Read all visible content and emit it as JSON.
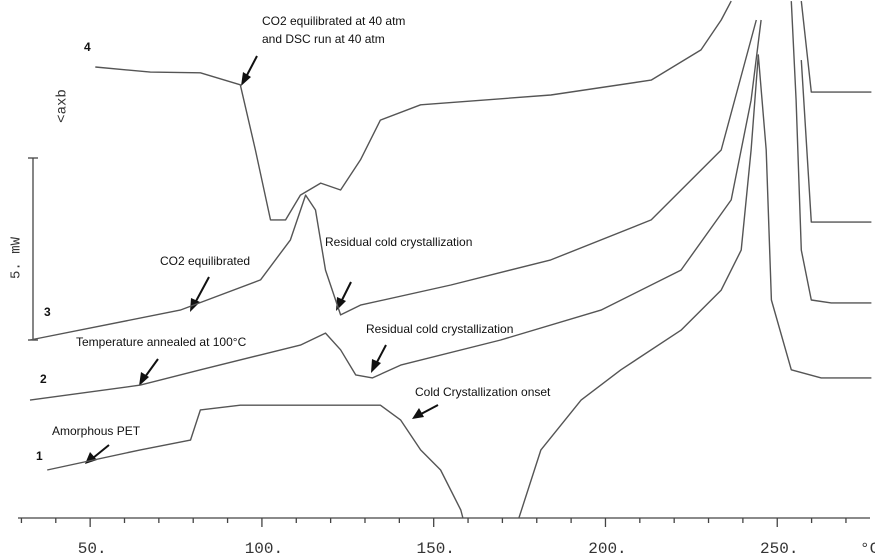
{
  "chart_data": {
    "type": "line",
    "xlim": [
      29,
      277
    ],
    "ylim": [
      0,
      14.2
    ],
    "xticks": [
      {
        "value": 50,
        "label": "50."
      },
      {
        "value": 100,
        "label": "100."
      },
      {
        "value": 150,
        "label": "150."
      },
      {
        "value": 200,
        "label": "200."
      },
      {
        "value": 250,
        "label": "250."
      }
    ],
    "x_minor_ticks": [
      30,
      40,
      60,
      70,
      80,
      90,
      110,
      120,
      130,
      140,
      160,
      170,
      180,
      190,
      210,
      220,
      230,
      240,
      260,
      270
    ],
    "x_unit": "°C",
    "scale_bar": {
      "value": 5,
      "label": "5. mW"
    },
    "exo_label": "<axb",
    "series": [
      {
        "name": "1",
        "color": "#555555",
        "x": [
          37.5,
          64.6,
          79.2,
          82.1,
          93.7,
          134.5,
          140.4,
          146.2,
          152.0,
          157.9,
          158.5,
          166.6,
          174.8,
          181.2,
          192.9,
          204.5,
          222.0,
          233.7,
          239.5,
          242.4,
          244.5,
          246.8,
          248.3,
          254.1,
          262.8,
          277.4
        ],
        "values": [
          1.32,
          1.87,
          2.14,
          2.97,
          3.1,
          3.1,
          2.69,
          1.87,
          1.32,
          0.22,
          0,
          null,
          0,
          1.87,
          3.24,
          4.07,
          5.16,
          6.26,
          7.36,
          10.11,
          12.72,
          10.11,
          5.99,
          4.07,
          3.85,
          3.85
        ]
      },
      {
        "name": "2",
        "color": "#555555",
        "x": [
          32.5,
          64.6,
          82.1,
          99.6,
          111.2,
          118.5,
          122.9,
          127.3,
          132.2,
          140.4,
          169.5,
          198.7,
          222.0,
          236.6,
          242.4,
          245.3,
          250,
          254.1,
          255.5,
          257.0,
          259.9,
          265.7,
          277.4
        ],
        "values": [
          3.24,
          3.65,
          4.07,
          4.48,
          4.75,
          5.08,
          4.62,
          3.93,
          3.85,
          4.2,
          4.89,
          5.71,
          6.81,
          8.74,
          11.48,
          13.68,
          null,
          14.2,
          11.48,
          7.36,
          5.99,
          5.91,
          5.91
        ]
      },
      {
        "name": "3",
        "color": "#555555",
        "x": [
          32.5,
          76.2,
          99.6,
          108.3,
          112.7,
          115.6,
          118.5,
          122.9,
          128.7,
          155.0,
          184.1,
          213.3,
          233.7,
          243.9,
          250,
          257.0,
          259.9,
          277.4
        ],
        "values": [
          4.89,
          5.71,
          6.54,
          7.64,
          8.87,
          8.46,
          6.81,
          5.58,
          5.85,
          6.4,
          7.09,
          8.19,
          10.11,
          13.68,
          null,
          12.58,
          8.13,
          8.13
        ]
      },
      {
        "name": "4",
        "color": "#555555",
        "x": [
          51.5,
          67.5,
          82.1,
          93.7,
          98.1,
          102.5,
          106.9,
          111.2,
          117.1,
          122.9,
          128.7,
          134.5,
          146.2,
          184.1,
          213.3,
          227.8,
          233.7,
          236.6,
          250,
          257.0,
          259.9,
          277.4
        ],
        "values": [
          12.39,
          12.25,
          12.23,
          11.9,
          10.11,
          8.19,
          8.19,
          8.87,
          9.2,
          9.01,
          9.84,
          10.93,
          11.35,
          11.62,
          12.03,
          12.86,
          13.68,
          14.2,
          null,
          14.2,
          11.7,
          11.7
        ]
      }
    ],
    "annotations": [
      "CO2 equilibrated at 40 atm",
      "and DSC run at 40 atm",
      "Residual cold crystallization",
      "CO2 equilibrated",
      "Temperature annealed at 100°C",
      "Residual cold crystallization",
      "Cold Crystallization onset",
      "Amorphous PET"
    ]
  }
}
